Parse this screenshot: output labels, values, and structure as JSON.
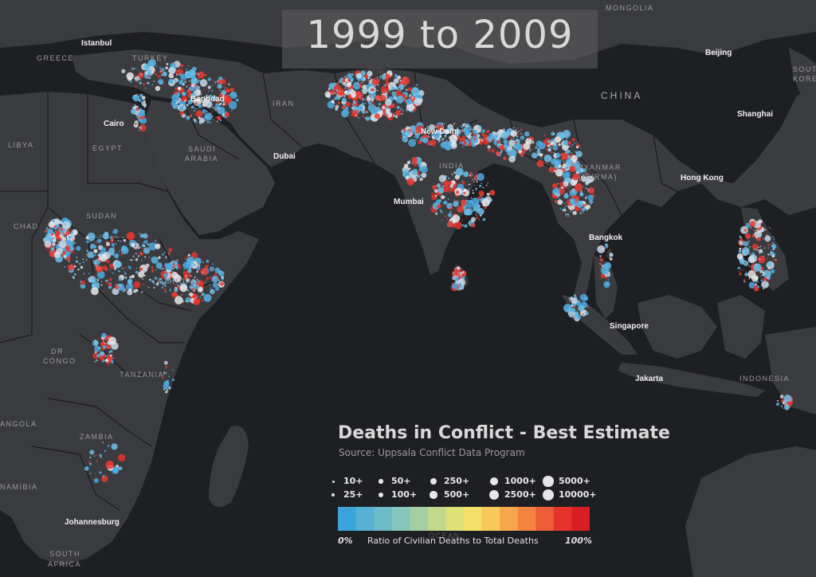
{
  "title": "1999 to 2009",
  "legend": {
    "title": "Deaths in Conflict - Best Estimate",
    "source": "Source: Uppsala Conflict Data Program",
    "size_classes": [
      "10+",
      "25+",
      "50+",
      "100+",
      "250+",
      "500+",
      "1000+",
      "2500+",
      "5000+",
      "10000+"
    ],
    "ramp_colors": [
      "#3aa3db",
      "#55b0d3",
      "#6cbbc9",
      "#86c5b9",
      "#a4cfa4",
      "#c2d88c",
      "#dde178",
      "#f3e06a",
      "#f7c85a",
      "#f6a64c",
      "#f28340",
      "#ec5d36",
      "#e4322d",
      "#d81d24"
    ],
    "ramp_min_label": "0%",
    "ramp_caption": "Ratio of Civilian Deaths to Total Deaths",
    "ramp_max_label": "100%"
  },
  "city_labels": [
    {
      "id": "istanbul",
      "text": "Istanbul"
    },
    {
      "id": "baghdad",
      "text": "Baghdad"
    },
    {
      "id": "cairo",
      "text": "Cairo"
    },
    {
      "id": "dubai",
      "text": "Dubai"
    },
    {
      "id": "new-delhi",
      "text": "New Delhi"
    },
    {
      "id": "mumbai",
      "text": "Mumbai"
    },
    {
      "id": "beijing",
      "text": "Beijing"
    },
    {
      "id": "shanghai",
      "text": "Shanghai"
    },
    {
      "id": "hong-kong",
      "text": "Hong Kong"
    },
    {
      "id": "bangkok",
      "text": "Bangkok"
    },
    {
      "id": "singapore",
      "text": "Singapore"
    },
    {
      "id": "jakarta",
      "text": "Jakarta"
    },
    {
      "id": "johannesburg",
      "text": "Johannesburg"
    }
  ],
  "country_labels": [
    {
      "id": "greece",
      "text": "GREECE"
    },
    {
      "id": "turkey",
      "text": "TURKEY"
    },
    {
      "id": "libya",
      "text": "LIBYA"
    },
    {
      "id": "egypt",
      "text": "EGYPT"
    },
    {
      "id": "saudi-arabia-1",
      "text": "SAUDI"
    },
    {
      "id": "saudi-arabia-2",
      "text": "ARABIA"
    },
    {
      "id": "iran",
      "text": "IRAN"
    },
    {
      "id": "india",
      "text": "INDIA"
    },
    {
      "id": "myanmar-1",
      "text": "MYANMAR"
    },
    {
      "id": "myanmar-2",
      "text": "(BURMA)"
    },
    {
      "id": "chad",
      "text": "CHAD"
    },
    {
      "id": "sudan",
      "text": "SUDAN"
    },
    {
      "id": "ethiopia",
      "text": "ETHIOPIA"
    },
    {
      "id": "dr-congo-1",
      "text": "DR"
    },
    {
      "id": "dr-congo-2",
      "text": "CONGO"
    },
    {
      "id": "tanzania",
      "text": "TANZANIA"
    },
    {
      "id": "angola",
      "text": "ANGOLA"
    },
    {
      "id": "zambia",
      "text": "ZAMBIA"
    },
    {
      "id": "namibia",
      "text": "NAMIBIA"
    },
    {
      "id": "south-africa-1",
      "text": "SOUTH"
    },
    {
      "id": "south-africa-2",
      "text": "AFRICA"
    },
    {
      "id": "indonesia",
      "text": "INDONESIA"
    },
    {
      "id": "mongolia",
      "text": "MONGOLIA"
    },
    {
      "id": "south-korea-1",
      "text": "SOUTH"
    },
    {
      "id": "south-korea-2",
      "text": "KOREA"
    },
    {
      "id": "ocean",
      "text": "OCEAN"
    }
  ],
  "big_labels": [
    {
      "id": "china",
      "text": "CHINA"
    }
  ]
}
